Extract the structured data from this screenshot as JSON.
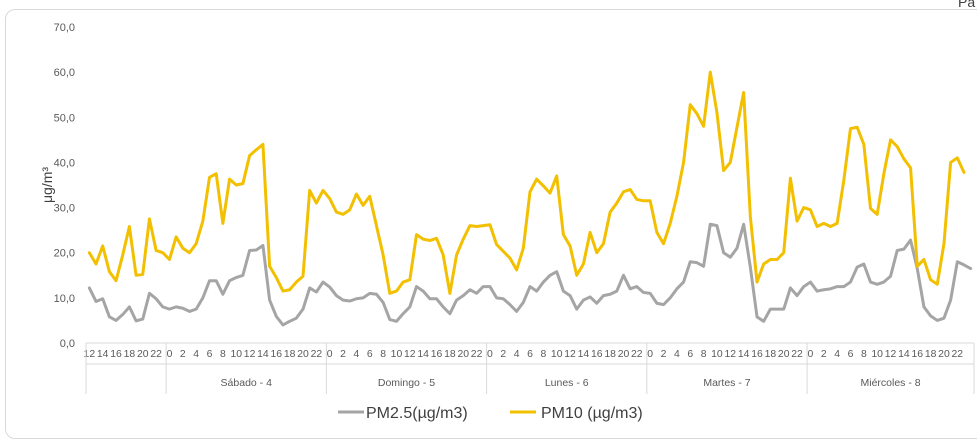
{
  "corner_text": "Pa",
  "chart_data": {
    "type": "line",
    "ylabel": "μg/m³",
    "ylim": [
      0,
      70
    ],
    "yticks": [
      "0,0",
      "10,0",
      "20,0",
      "30,0",
      "40,0",
      "50,0",
      "60,0",
      "70,0"
    ],
    "grid": false,
    "legend_position": "bottom",
    "hour_labels_first": [
      "12",
      "14",
      "16",
      "18",
      "20",
      "22"
    ],
    "hour_labels": [
      "0",
      "2",
      "4",
      "6",
      "8",
      "10",
      "12",
      "14",
      "16",
      "18",
      "20",
      "22"
    ],
    "groups": [
      "",
      "Sábado - 4",
      "Domingo - 5",
      "Lunes - 6",
      "Martes - 7",
      "Miércoles - 8"
    ],
    "series": [
      {
        "name": "PM2.5(µg/m3)",
        "color": "#a5a5a5",
        "values": [
          12.2,
          9.2,
          9.8,
          5.8,
          5.0,
          6.3,
          8.0,
          4.9,
          5.3,
          11.0,
          9.8,
          8.0,
          7.5,
          8.0,
          7.7,
          7.0,
          7.5,
          10.0,
          13.8,
          13.8,
          10.8,
          13.8,
          14.5,
          15.0,
          20.5,
          20.6,
          21.6,
          9.5,
          5.9,
          4.0,
          4.8,
          5.5,
          7.5,
          12.2,
          11.3,
          13.5,
          12.4,
          10.5,
          9.5,
          9.3,
          9.8,
          10.0,
          11.0,
          10.8,
          9.0,
          5.2,
          4.8,
          6.5,
          8.0,
          12.5,
          11.5,
          9.8,
          9.8,
          8.0,
          6.5,
          9.5,
          10.5,
          11.8,
          11.0,
          12.5,
          12.5,
          10.0,
          9.8,
          8.5,
          7.0,
          9.0,
          12.5,
          11.5,
          13.5,
          15.0,
          15.8,
          11.5,
          10.5,
          7.5,
          9.5,
          10.2,
          8.8,
          10.5,
          10.8,
          11.5,
          15.0,
          12.0,
          12.5,
          11.2,
          11.0,
          8.8,
          8.5,
          10.0,
          12.0,
          13.5,
          18.0,
          17.8,
          17.0,
          26.3,
          26.0,
          20.0,
          19.0,
          21.0,
          26.3,
          16.8,
          5.8,
          4.8,
          7.5,
          7.5,
          7.5,
          12.2,
          10.5,
          12.5,
          13.5,
          11.5,
          11.8,
          12.0,
          12.5,
          12.5,
          13.5,
          16.8,
          17.5,
          13.5,
          13.0,
          13.5,
          14.8,
          20.5,
          20.8,
          22.8,
          16.5,
          8.0,
          6.0,
          5.0,
          5.5,
          9.5,
          18.0,
          17.3,
          16.5
        ]
      },
      {
        "name": "PM10  (µg/m3)",
        "color": "#f2c000",
        "values": [
          20.0,
          17.5,
          21.5,
          15.8,
          13.8,
          19.5,
          25.8,
          15.0,
          15.2,
          27.5,
          20.5,
          20.0,
          18.5,
          23.5,
          21.0,
          20.0,
          22.0,
          27.0,
          36.7,
          37.5,
          26.5,
          36.3,
          35.0,
          35.3,
          41.5,
          42.8,
          44.0,
          17.0,
          14.5,
          11.5,
          11.8,
          13.5,
          14.8,
          33.8,
          31.0,
          33.8,
          32.0,
          29.0,
          28.5,
          29.5,
          33.0,
          30.5,
          32.5,
          26.0,
          19.5,
          11.0,
          11.5,
          13.5,
          14.0,
          24.0,
          23.0,
          22.7,
          23.2,
          19.5,
          11.0,
          19.5,
          23.0,
          26.0,
          25.8,
          26.0,
          26.2,
          21.8,
          20.3,
          18.8,
          16.2,
          21.0,
          33.5,
          36.3,
          34.8,
          33.2,
          37.0,
          24.0,
          21.5,
          15.0,
          17.5,
          24.5,
          20.0,
          22.0,
          29.0,
          31.0,
          33.5,
          34.0,
          31.8,
          31.5,
          31.5,
          24.5,
          22.0,
          26.5,
          32.5,
          40.0,
          52.8,
          50.8,
          48.0,
          60.0,
          51.0,
          38.2,
          40.0,
          47.8,
          55.5,
          28.0,
          13.5,
          17.5,
          18.5,
          18.5,
          20.0,
          36.5,
          27.0,
          30.0,
          29.5,
          25.8,
          26.5,
          25.8,
          26.5,
          36.0,
          47.5,
          47.8,
          44.0,
          29.8,
          28.5,
          37.5,
          45.0,
          43.5,
          40.8,
          38.8,
          17.0,
          18.5,
          14.0,
          13.0,
          22.0,
          40.0,
          41.0,
          37.8
        ]
      }
    ]
  }
}
